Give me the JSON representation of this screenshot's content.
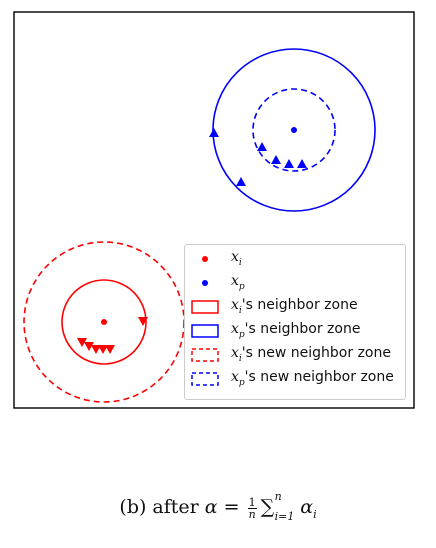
{
  "colors": {
    "red": "#ff0000",
    "blue": "#0000ff",
    "frame": "#000000",
    "legend_border": "#cccccc"
  },
  "legend": {
    "xi": {
      "base": "x",
      "sub": "i"
    },
    "xp": {
      "base": "x",
      "sub": "p"
    },
    "xi_zone": {
      "base": "x",
      "sub": "i",
      "text": "'s neighbor zone"
    },
    "xp_zone": {
      "base": "x",
      "sub": "p",
      "text": "'s neighbor zone"
    },
    "xi_new_zone": {
      "base": "x",
      "sub": "i",
      "text": "'s new neighbor zone"
    },
    "xp_new_zone": {
      "base": "x",
      "sub": "p",
      "text": "'s new neighbor zone"
    }
  },
  "caption": {
    "prefix": "(b) after ",
    "alpha": "α",
    "equals": " = ",
    "frac_num": "1",
    "frac_den": "n",
    "sum": "∑",
    "sum_upper": "n",
    "sum_lower": "i=1",
    "alpha_i": "α",
    "alpha_i_sub": "i"
  },
  "icons": {
    "point": "dot-icon",
    "neighbor": "triangle-icon"
  }
}
